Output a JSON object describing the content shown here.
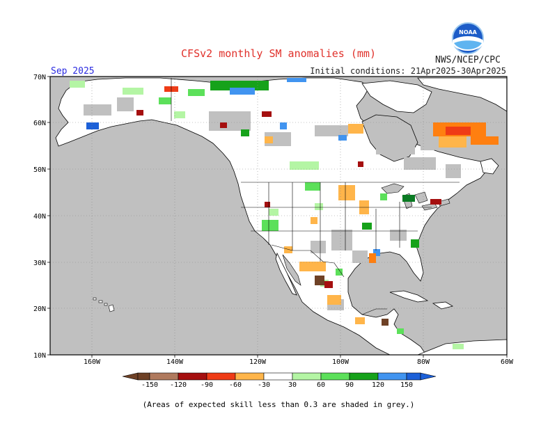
{
  "header": {
    "title": "CFSv2 monthly SM anomalies (mm)",
    "agency": "NWS/NCEP/CPC",
    "logo_text": "NOAA",
    "valid_month": "Sep 2025",
    "initial_conditions": "Initial conditions: 21Apr2025-30Apr2025"
  },
  "map": {
    "lat_labels": [
      "70N",
      "60N",
      "50N",
      "40N",
      "30N",
      "20N",
      "10N"
    ],
    "lon_labels": [
      "160W",
      "140W",
      "120W",
      "100W",
      "80W",
      "60W"
    ],
    "background_color": "#c0c0c0",
    "land_color": "#ffffff"
  },
  "colorbar": {
    "labels": [
      "-150",
      "-120",
      "-90",
      "-60",
      "-30",
      "30",
      "60",
      "90",
      "120",
      "150"
    ],
    "colors": [
      "#6e4126",
      "#b07a5e",
      "#a50f0f",
      "#ef3b16",
      "#ff7f10",
      "#ffb54a",
      "#ffffff",
      "#b4f5a4",
      "#5ce05a",
      "#16a21a",
      "#0a7b23",
      "#4194f0",
      "#1c60d8"
    ]
  },
  "footer": {
    "note": "(Areas of expected skill less than 0.3 are shaded in grey.)"
  }
}
